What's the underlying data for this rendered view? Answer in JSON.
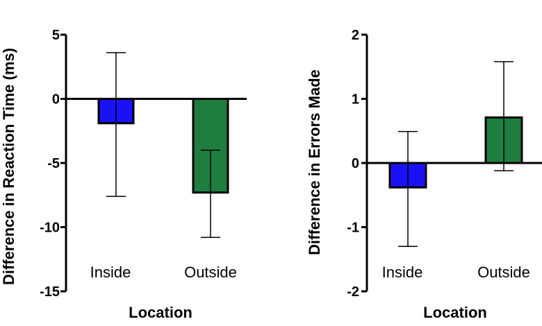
{
  "chart_data": [
    {
      "type": "bar",
      "xlabel": "Location",
      "ylabel": "Difference in Reaction Time (ms)",
      "ylim": [
        -15,
        5
      ],
      "yticks": [
        5,
        0,
        -5,
        -10,
        -15
      ],
      "categories": [
        "Inside",
        "Outside"
      ],
      "values": [
        -1.9,
        -7.3
      ],
      "error_low": [
        -7.6,
        -10.8
      ],
      "error_high": [
        3.6,
        -4.0
      ],
      "colors": [
        "#1a12f5",
        "#1d7e40"
      ],
      "grid": false,
      "legend": "none"
    },
    {
      "type": "bar",
      "xlabel": "Location",
      "ylabel": "Difference in Errors Made",
      "ylim": [
        -2,
        2
      ],
      "yticks": [
        2,
        1,
        0,
        -1,
        -2
      ],
      "categories": [
        "Inside",
        "Outside"
      ],
      "values": [
        -0.38,
        0.71
      ],
      "error_low": [
        -1.3,
        -0.12
      ],
      "error_high": [
        0.49,
        1.58
      ],
      "colors": [
        "#1a12f5",
        "#1d7e40"
      ],
      "grid": false,
      "legend": "none"
    }
  ]
}
